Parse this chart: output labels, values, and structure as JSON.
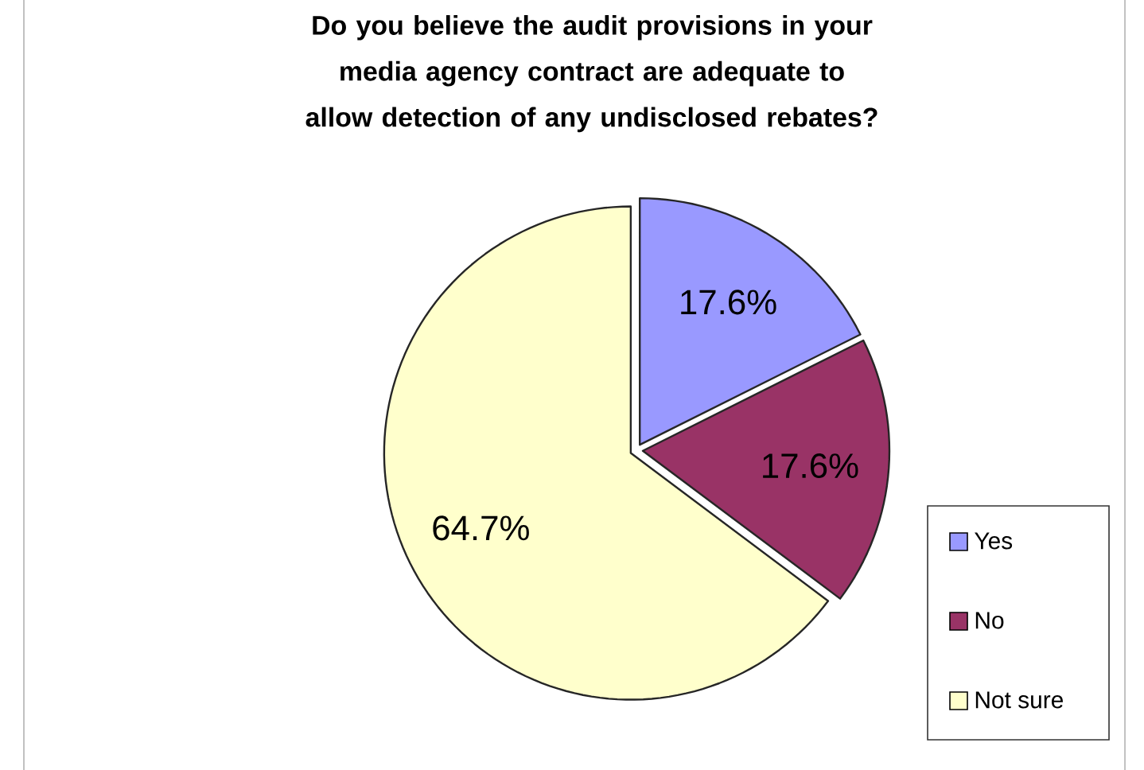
{
  "chart_data": {
    "type": "pie",
    "title": "Do you believe the audit provisions in your media agency contract are adequate to allow detection of any undisclosed rebates?",
    "categories": [
      "Yes",
      "No",
      "Not sure"
    ],
    "values": [
      17.6,
      17.6,
      64.7
    ],
    "colors": [
      "#9999ff",
      "#993366",
      "#ffffcc"
    ],
    "value_labels": [
      "17.6%",
      "17.6%",
      "64.7%"
    ],
    "legend": "right"
  }
}
